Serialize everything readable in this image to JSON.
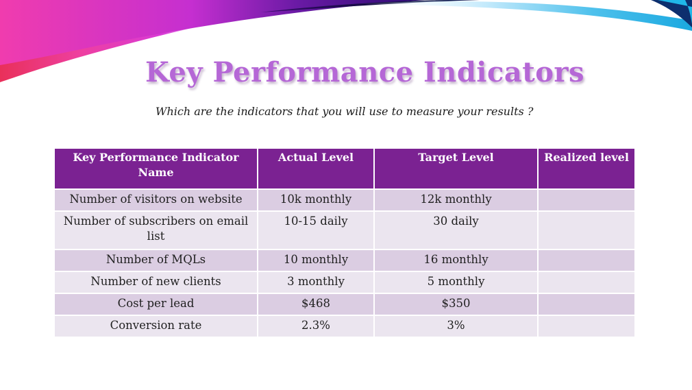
{
  "slide": {
    "title": "Key Performance Indicators",
    "subtitle": "Which are the indicators that you will use to measure your results ?"
  },
  "table": {
    "headers": [
      "Key Performance Indicator Name",
      "Actual Level",
      "Target Level",
      "Realized level"
    ],
    "rows": [
      [
        "Number of visitors on website",
        "10k monthly",
        "12k monthly",
        ""
      ],
      [
        "Number of subscribers on email list",
        "10-15 daily",
        "30 daily",
        ""
      ],
      [
        "Number of MQLs",
        "10 monthly",
        "16 monthly",
        ""
      ],
      [
        "Number of new clients",
        "3 monthly",
        "5 monthly",
        ""
      ],
      [
        "Cost per lead",
        "$468",
        "$350",
        ""
      ],
      [
        "Conversion rate",
        "2.3%",
        "3%",
        ""
      ]
    ]
  },
  "colors": {
    "title": "#b567d6",
    "header_bg": "#7b2292",
    "row_odd": "#dbcde2",
    "row_even": "#ebe5ef"
  }
}
